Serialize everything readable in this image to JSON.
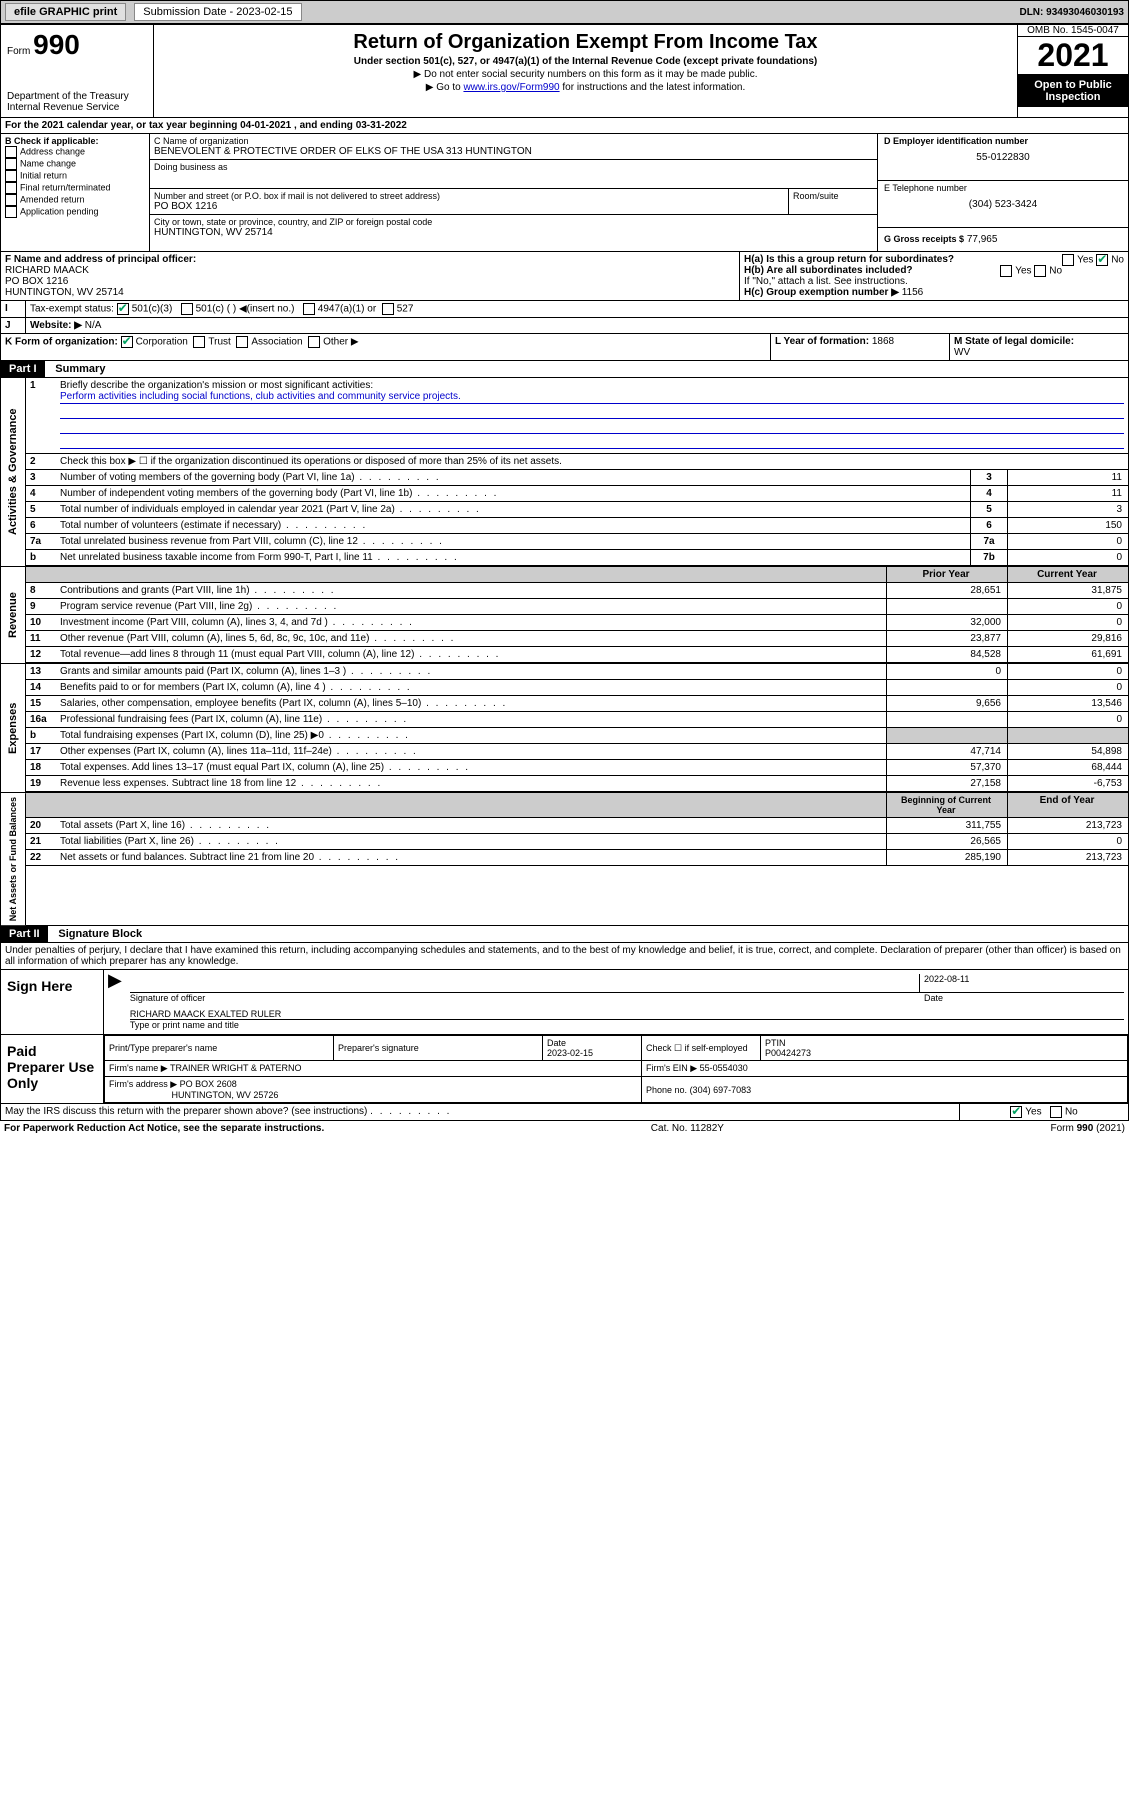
{
  "topbar": {
    "efile": "efile GRAPHIC print",
    "sub_label": "Submission Date - 2023-02-15",
    "dln": "DLN: 93493046030193"
  },
  "header": {
    "form_word": "Form",
    "form_no": "990",
    "dept": "Department of the Treasury",
    "irs": "Internal Revenue Service",
    "title": "Return of Organization Exempt From Income Tax",
    "sub1": "Under section 501(c), 527, or 4947(a)(1) of the Internal Revenue Code (except private foundations)",
    "sub2": "▶ Do not enter social security numbers on this form as it may be made public.",
    "sub3_pre": "▶ Go to ",
    "sub3_link": "www.irs.gov/Form990",
    "sub3_post": " for instructions and the latest information.",
    "omb": "OMB No. 1545-0047",
    "year": "2021",
    "open": "Open to Public Inspection"
  },
  "lineA": "For the 2021 calendar year, or tax year beginning 04-01-2021   , and ending 03-31-2022",
  "sectionB": {
    "title": "B Check if applicable:",
    "opts": [
      "Address change",
      "Name change",
      "Initial return",
      "Final return/terminated",
      "Amended return",
      "Application pending"
    ]
  },
  "sectionC": {
    "label_name": "C Name of organization",
    "name": "BENEVOLENT & PROTECTIVE ORDER OF ELKS OF THE USA 313 HUNTINGTON",
    "dba_label": "Doing business as",
    "street_label": "Number and street (or P.O. box if mail is not delivered to street address)",
    "room_label": "Room/suite",
    "street": "PO BOX 1216",
    "city_label": "City or town, state or province, country, and ZIP or foreign postal code",
    "city": "HUNTINGTON, WV  25714"
  },
  "sectionD": {
    "label": "D Employer identification number",
    "ein": "55-0122830",
    "tel_label": "E Telephone number",
    "tel": "(304) 523-3424",
    "gross_label": "G Gross receipts $",
    "gross": "77,965"
  },
  "sectionF": {
    "label": "F  Name and address of principal officer:",
    "name": "RICHARD MAACK",
    "street": "PO BOX 1216",
    "city": "HUNTINGTON, WV  25714"
  },
  "sectionH": {
    "a": "H(a)  Is this a group return for subordinates?",
    "b": "H(b)  Are all subordinates included?",
    "b_note": "If \"No,\" attach a list. See instructions.",
    "c": "H(c)  Group exemption number ▶",
    "c_val": "1156",
    "yes": "Yes",
    "no": "No"
  },
  "sectionI": {
    "label": "Tax-exempt status:",
    "o1": "501(c)(3)",
    "o2": "501(c) (  ) ◀(insert no.)",
    "o3": "4947(a)(1) or",
    "o4": "527"
  },
  "sectionJ": {
    "label": "Website: ▶",
    "val": "N/A"
  },
  "sectionK": {
    "label": "K Form of organization:",
    "o1": "Corporation",
    "o2": "Trust",
    "o3": "Association",
    "o4": "Other ▶"
  },
  "sectionL": {
    "label": "L Year of formation:",
    "val": "1868"
  },
  "sectionM": {
    "label": "M State of legal domicile:",
    "val": "WV"
  },
  "part1": {
    "header": "Part I",
    "title": "Summary",
    "vlab1": "Activities & Governance",
    "vlab2": "Revenue",
    "vlab3": "Expenses",
    "vlab4": "Net Assets or Fund Balances",
    "l1_label": "Briefly describe the organization's mission or most significant activities:",
    "l1_text": "Perform activities including social functions, club activities and community service projects.",
    "l2": "Check this box ▶ ☐  if the organization discontinued its operations or disposed of more than 25% of its net assets.",
    "rows_gov": [
      {
        "n": "3",
        "t": "Number of voting members of the governing body (Part VI, line 1a)",
        "box": "3",
        "v": "11"
      },
      {
        "n": "4",
        "t": "Number of independent voting members of the governing body (Part VI, line 1b)",
        "box": "4",
        "v": "11"
      },
      {
        "n": "5",
        "t": "Total number of individuals employed in calendar year 2021 (Part V, line 2a)",
        "box": "5",
        "v": "3"
      },
      {
        "n": "6",
        "t": "Total number of volunteers (estimate if necessary)",
        "box": "6",
        "v": "150"
      },
      {
        "n": "7a",
        "t": "Total unrelated business revenue from Part VIII, column (C), line 12",
        "box": "7a",
        "v": "0"
      },
      {
        "n": "b",
        "t": "Net unrelated business taxable income from Form 990-T, Part I, line 11",
        "box": "7b",
        "v": "0"
      }
    ],
    "col_prior": "Prior Year",
    "col_curr": "Current Year",
    "rows_rev": [
      {
        "n": "8",
        "t": "Contributions and grants (Part VIII, line 1h)",
        "p": "28,651",
        "c": "31,875"
      },
      {
        "n": "9",
        "t": "Program service revenue (Part VIII, line 2g)",
        "p": "",
        "c": "0"
      },
      {
        "n": "10",
        "t": "Investment income (Part VIII, column (A), lines 3, 4, and 7d )",
        "p": "32,000",
        "c": "0"
      },
      {
        "n": "11",
        "t": "Other revenue (Part VIII, column (A), lines 5, 6d, 8c, 9c, 10c, and 11e)",
        "p": "23,877",
        "c": "29,816"
      },
      {
        "n": "12",
        "t": "Total revenue—add lines 8 through 11 (must equal Part VIII, column (A), line 12)",
        "p": "84,528",
        "c": "61,691"
      }
    ],
    "rows_exp": [
      {
        "n": "13",
        "t": "Grants and similar amounts paid (Part IX, column (A), lines 1–3 )",
        "p": "0",
        "c": "0"
      },
      {
        "n": "14",
        "t": "Benefits paid to or for members (Part IX, column (A), line 4 )",
        "p": "",
        "c": "0"
      },
      {
        "n": "15",
        "t": "Salaries, other compensation, employee benefits (Part IX, column (A), lines 5–10)",
        "p": "9,656",
        "c": "13,546"
      },
      {
        "n": "16a",
        "t": "Professional fundraising fees (Part IX, column (A), line 11e)",
        "p": "",
        "c": "0"
      },
      {
        "n": "b",
        "t": "Total fundraising expenses (Part IX, column (D), line 25) ▶0",
        "p": "grey",
        "c": "grey"
      },
      {
        "n": "17",
        "t": "Other expenses (Part IX, column (A), lines 11a–11d, 11f–24e)",
        "p": "47,714",
        "c": "54,898"
      },
      {
        "n": "18",
        "t": "Total expenses. Add lines 13–17 (must equal Part IX, column (A), line 25)",
        "p": "57,370",
        "c": "68,444"
      },
      {
        "n": "19",
        "t": "Revenue less expenses. Subtract line 18 from line 12",
        "p": "27,158",
        "c": "-6,753"
      }
    ],
    "col_begin": "Beginning of Current Year",
    "col_end": "End of Year",
    "rows_net": [
      {
        "n": "20",
        "t": "Total assets (Part X, line 16)",
        "p": "311,755",
        "c": "213,723"
      },
      {
        "n": "21",
        "t": "Total liabilities (Part X, line 26)",
        "p": "26,565",
        "c": "0"
      },
      {
        "n": "22",
        "t": "Net assets or fund balances. Subtract line 21 from line 20",
        "p": "285,190",
        "c": "213,723"
      }
    ]
  },
  "part2": {
    "header": "Part II",
    "title": "Signature Block",
    "decl": "Under penalties of perjury, I declare that I have examined this return, including accompanying schedules and statements, and to the best of my knowledge and belief, it is true, correct, and complete. Declaration of preparer (other than officer) is based on all information of which preparer has any knowledge.",
    "sign_here": "Sign Here",
    "sig_officer": "Signature of officer",
    "sig_date": "Date",
    "sig_date_val": "2022-08-11",
    "officer_name": "RICHARD MAACK  EXALTED RULER",
    "type_name": "Type or print name and title",
    "paid": "Paid Preparer Use Only",
    "prep_name_label": "Print/Type preparer's name",
    "prep_sig_label": "Preparer's signature",
    "prep_date_label": "Date",
    "prep_date": "2023-02-15",
    "check_if": "Check ☐ if self-employed",
    "ptin_label": "PTIN",
    "ptin": "P00424273",
    "firm_name_label": "Firm's name    ▶",
    "firm_name": "TRAINER WRIGHT & PATERNO",
    "firm_ein_label": "Firm's EIN ▶",
    "firm_ein": "55-0554030",
    "firm_addr_label": "Firm's address ▶",
    "firm_addr1": "PO BOX 2608",
    "firm_addr2": "HUNTINGTON, WV  25726",
    "phone_label": "Phone no.",
    "phone": "(304) 697-7083",
    "may_irs": "May the IRS discuss this return with the preparer shown above? (see instructions)",
    "yes": "Yes",
    "no": "No"
  },
  "footer": {
    "left": "For Paperwork Reduction Act Notice, see the separate instructions.",
    "mid": "Cat. No. 11282Y",
    "right": "Form 990 (2021)"
  }
}
